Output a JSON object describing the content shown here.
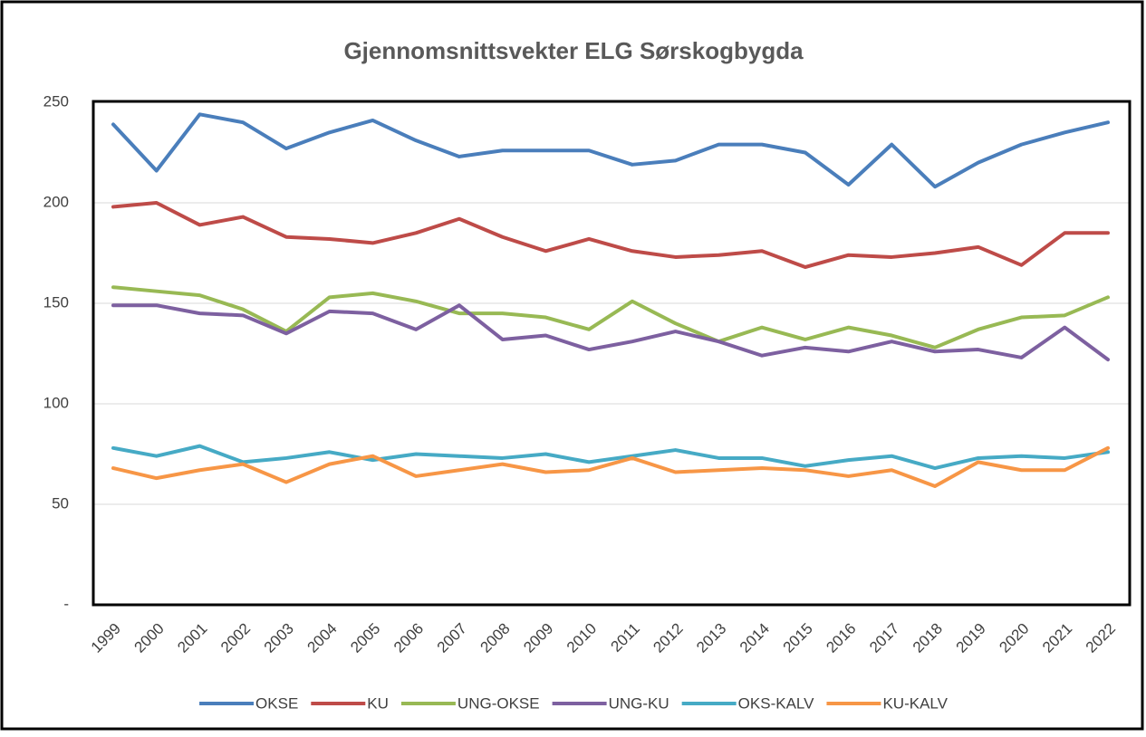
{
  "chart_data": {
    "type": "line",
    "title": "Gjennomsnittsvekter ELG Sørskogbygda",
    "categories": [
      "1999",
      "2000",
      "2001",
      "2002",
      "2003",
      "2004",
      "2005",
      "2006",
      "2007",
      "2008",
      "2009",
      "2010",
      "2011",
      "2012",
      "2013",
      "2014",
      "2015",
      "2016",
      "2017",
      "2018",
      "2019",
      "2020",
      "2021",
      "2022"
    ],
    "series": [
      {
        "name": "OKSE",
        "color": "#4a7ebb",
        "values": [
          239,
          216,
          244,
          240,
          227,
          235,
          241,
          231,
          223,
          226,
          226,
          226,
          219,
          221,
          229,
          229,
          225,
          209,
          229,
          208,
          220,
          229,
          235,
          240
        ]
      },
      {
        "name": "KU",
        "color": "#be4b48",
        "values": [
          198,
          200,
          189,
          193,
          183,
          182,
          180,
          185,
          192,
          183,
          176,
          182,
          176,
          173,
          174,
          176,
          168,
          174,
          173,
          175,
          178,
          169,
          185,
          185
        ]
      },
      {
        "name": "UNG-OKSE",
        "color": "#98b954",
        "values": [
          158,
          156,
          154,
          147,
          136,
          153,
          155,
          151,
          145,
          145,
          143,
          137,
          151,
          140,
          131,
          138,
          132,
          138,
          134,
          128,
          137,
          143,
          144,
          153
        ]
      },
      {
        "name": "UNG-KU",
        "color": "#7d60a0",
        "values": [
          149,
          149,
          145,
          144,
          135,
          146,
          145,
          137,
          149,
          132,
          134,
          127,
          131,
          136,
          131,
          124,
          128,
          126,
          131,
          126,
          127,
          123,
          138,
          122
        ]
      },
      {
        "name": "OKS-KALV",
        "color": "#46aac5",
        "values": [
          78,
          74,
          79,
          71,
          73,
          76,
          72,
          75,
          74,
          73,
          75,
          71,
          74,
          77,
          73,
          73,
          69,
          72,
          74,
          68,
          73,
          74,
          73,
          76
        ]
      },
      {
        "name": "KU-KALV",
        "color": "#f79646",
        "values": [
          68,
          63,
          67,
          70,
          61,
          70,
          74,
          64,
          67,
          70,
          66,
          67,
          73,
          66,
          67,
          68,
          67,
          64,
          67,
          59,
          71,
          67,
          67,
          78
        ]
      }
    ],
    "ylim": [
      0,
      250
    ],
    "yticks": [
      {
        "value": 0,
        "label": "-"
      },
      50,
      100,
      150,
      200,
      250
    ],
    "grid": true,
    "legend": "bottom"
  }
}
